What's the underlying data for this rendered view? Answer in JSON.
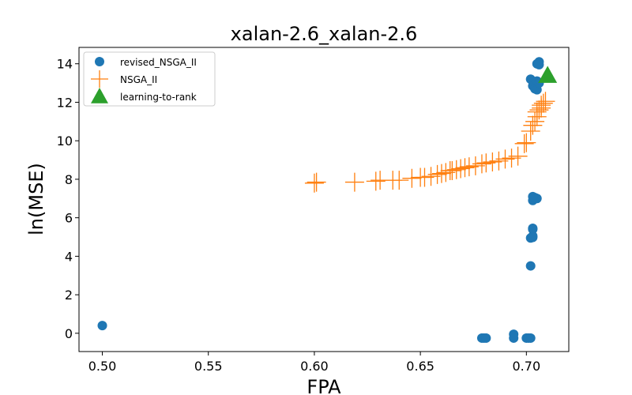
{
  "chart_data": {
    "type": "scatter",
    "title": "xalan-2.6_xalan-2.6",
    "xlabel": "FPA",
    "ylabel": "ln(MSE)",
    "xlim": [
      0.489,
      0.72
    ],
    "ylim": [
      -0.95,
      14.85
    ],
    "xticks": [
      0.5,
      0.55,
      0.6,
      0.65,
      0.7
    ],
    "xtick_labels": [
      "0.50",
      "0.55",
      "0.60",
      "0.65",
      "0.70"
    ],
    "yticks": [
      0,
      2,
      4,
      6,
      8,
      10,
      12,
      14
    ],
    "ytick_labels": [
      "0",
      "2",
      "4",
      "6",
      "8",
      "10",
      "12",
      "14"
    ],
    "grid": false,
    "legend_position": "top-left",
    "series": [
      {
        "name": "revised_NSGA_II",
        "marker": "circle",
        "color": "#1f77b4",
        "points": [
          [
            0.5,
            0.4
          ],
          [
            0.679,
            -0.25
          ],
          [
            0.68,
            -0.25
          ],
          [
            0.681,
            -0.25
          ],
          [
            0.694,
            -0.05
          ],
          [
            0.694,
            -0.25
          ],
          [
            0.7,
            -0.25
          ],
          [
            0.701,
            -0.25
          ],
          [
            0.702,
            -0.25
          ],
          [
            0.702,
            3.5
          ],
          [
            0.702,
            4.95
          ],
          [
            0.703,
            5.05
          ],
          [
            0.703,
            4.98
          ],
          [
            0.703,
            5.45
          ],
          [
            0.703,
            5.4
          ],
          [
            0.703,
            6.9
          ],
          [
            0.704,
            7.05
          ],
          [
            0.705,
            7.0
          ],
          [
            0.703,
            7.1
          ],
          [
            0.702,
            13.2
          ],
          [
            0.703,
            12.85
          ],
          [
            0.704,
            12.7
          ],
          [
            0.705,
            12.65
          ],
          [
            0.705,
            13.1
          ],
          [
            0.706,
            13.0
          ],
          [
            0.705,
            14.0
          ],
          [
            0.706,
            14.1
          ],
          [
            0.706,
            13.95
          ]
        ]
      },
      {
        "name": "NSGA_II",
        "marker": "plus",
        "color": "#ff7f0e",
        "points": [
          [
            0.6,
            7.8
          ],
          [
            0.601,
            7.85
          ],
          [
            0.619,
            7.85
          ],
          [
            0.629,
            7.9
          ],
          [
            0.631,
            7.95
          ],
          [
            0.637,
            7.95
          ],
          [
            0.64,
            7.95
          ],
          [
            0.646,
            8.05
          ],
          [
            0.65,
            8.1
          ],
          [
            0.652,
            8.1
          ],
          [
            0.655,
            8.15
          ],
          [
            0.658,
            8.25
          ],
          [
            0.66,
            8.3
          ],
          [
            0.662,
            8.35
          ],
          [
            0.664,
            8.45
          ],
          [
            0.665,
            8.45
          ],
          [
            0.667,
            8.5
          ],
          [
            0.669,
            8.55
          ],
          [
            0.671,
            8.6
          ],
          [
            0.673,
            8.65
          ],
          [
            0.676,
            8.7
          ],
          [
            0.679,
            8.8
          ],
          [
            0.681,
            8.85
          ],
          [
            0.684,
            8.9
          ],
          [
            0.687,
            8.95
          ],
          [
            0.69,
            9.05
          ],
          [
            0.693,
            9.1
          ],
          [
            0.696,
            9.2
          ],
          [
            0.699,
            9.85
          ],
          [
            0.7,
            9.9
          ],
          [
            0.702,
            10.5
          ],
          [
            0.703,
            10.8
          ],
          [
            0.704,
            11.0
          ],
          [
            0.705,
            11.25
          ],
          [
            0.705,
            11.5
          ],
          [
            0.706,
            11.6
          ],
          [
            0.707,
            11.7
          ],
          [
            0.707,
            11.85
          ],
          [
            0.708,
            11.95
          ],
          [
            0.709,
            12.05
          ]
        ]
      },
      {
        "name": "learning-to-rank",
        "marker": "triangle",
        "color": "#2ca02c",
        "points": [
          [
            0.71,
            13.4
          ]
        ]
      }
    ]
  }
}
